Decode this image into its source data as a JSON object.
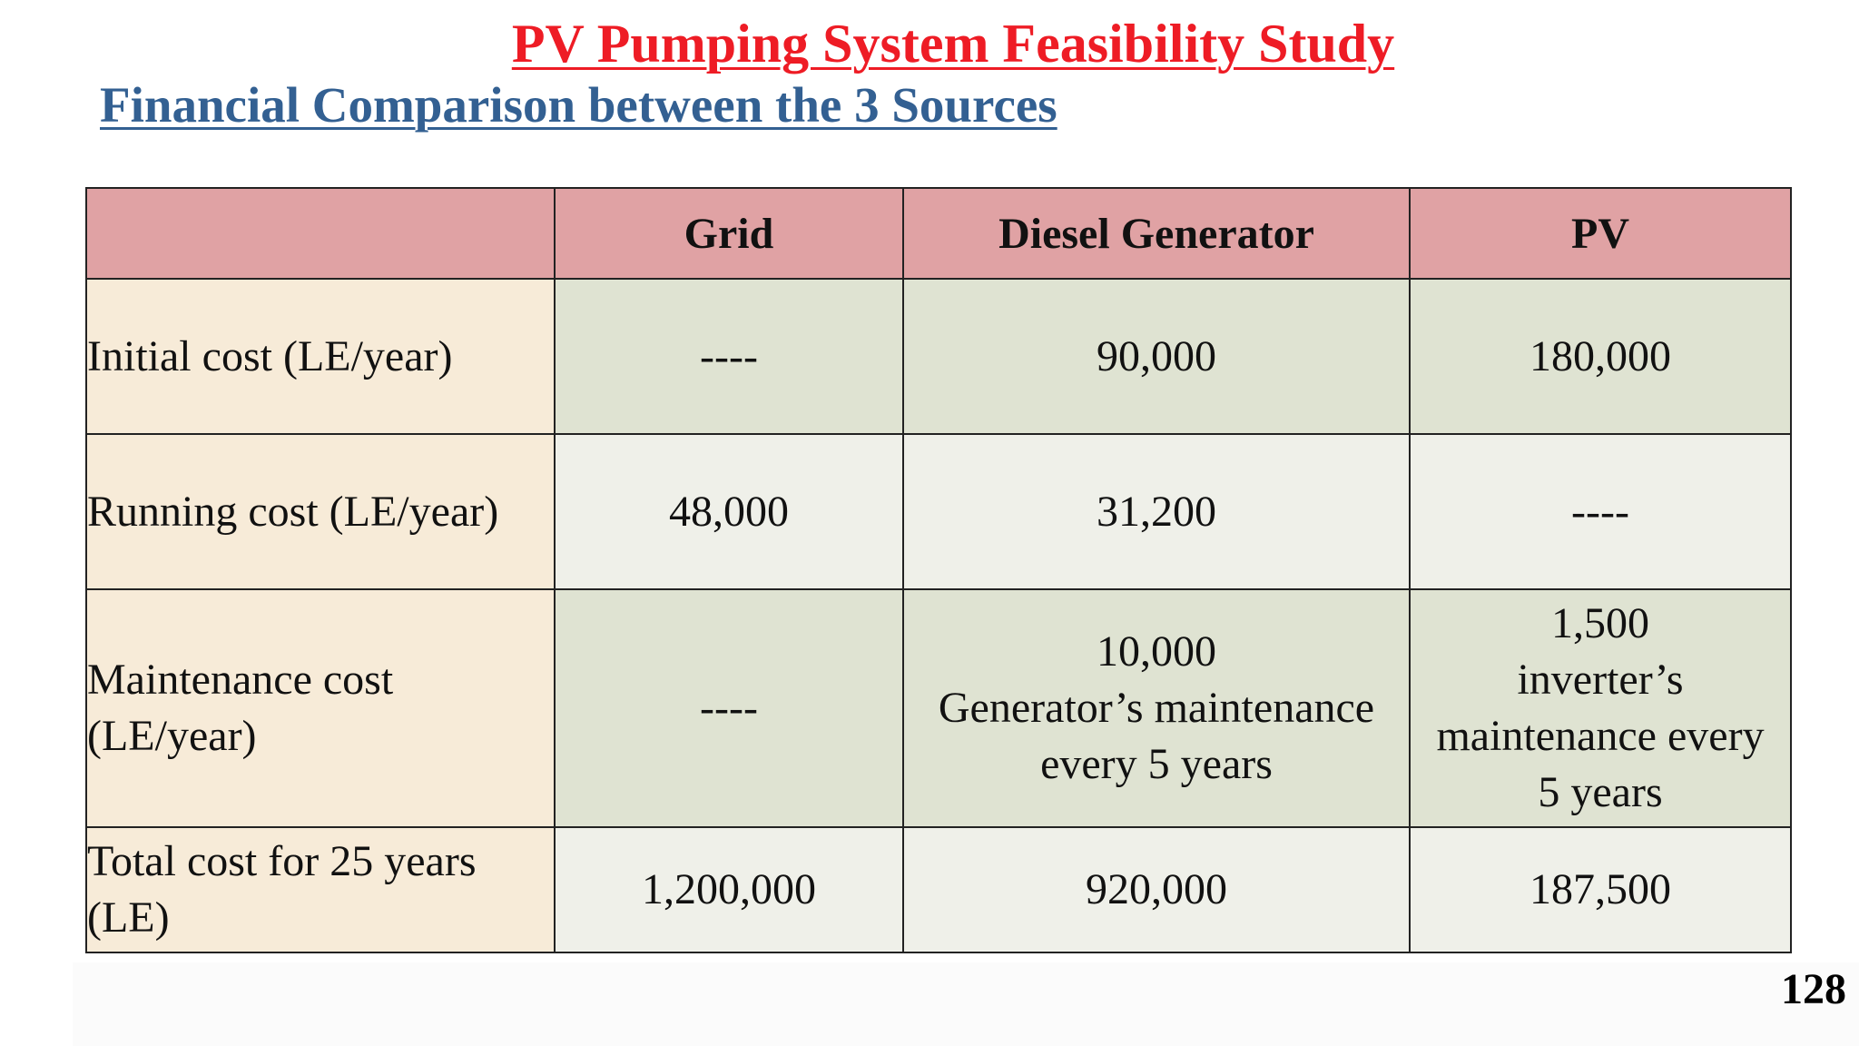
{
  "title": "PV Pumping System Feasibility Study",
  "subtitle": "Financial Comparison between the 3 Sources",
  "table": {
    "headers": [
      "",
      "Grid",
      "Diesel Generator",
      "PV"
    ],
    "rows": [
      {
        "label": "Initial cost (LE/year)",
        "grid": "----",
        "diesel": "90,000",
        "pv": "180,000"
      },
      {
        "label": "Running cost (LE/year)",
        "grid": "48,000",
        "diesel": "31,200",
        "pv": "----"
      },
      {
        "label_lines": [
          "Maintenance cost",
          "(LE/year)"
        ],
        "grid": "----",
        "diesel_lines": [
          "10,000",
          "Generator’s maintenance",
          "every 5 years"
        ],
        "pv_lines": [
          "1,500",
          "inverter’s",
          "maintenance every",
          "5 years"
        ]
      },
      {
        "label_lines": [
          "Total cost for 25 years",
          "(LE)"
        ],
        "grid": "1,200,000",
        "diesel": "920,000",
        "pv": "187,500"
      }
    ]
  },
  "colors": {
    "title": "#ee1c25",
    "subtitle": "#336092",
    "header_fill": "#e0a2a4",
    "label_fill": "#f7ebd8",
    "band_dark": "#dfe3d2",
    "band_light": "#eff0e9"
  },
  "page_number": "128"
}
